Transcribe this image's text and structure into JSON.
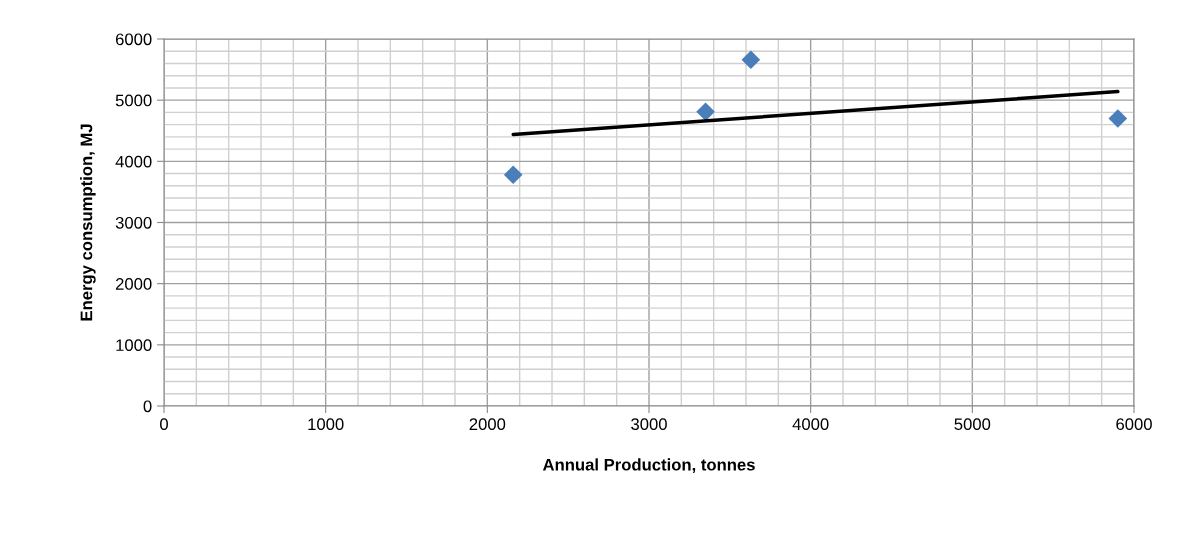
{
  "chart_data": {
    "type": "scatter",
    "xlabel": "Annual Production, tonnes",
    "ylabel": "Energy consumption, MJ",
    "xlim": [
      0,
      6000
    ],
    "xticks": [
      0,
      1000,
      2000,
      3000,
      4000,
      5000,
      6000
    ],
    "ylim": [
      0,
      6000
    ],
    "yticks": [
      0,
      1000,
      2000,
      3000,
      4000,
      5000,
      6000
    ],
    "grid": true,
    "legend": false,
    "series": [
      {
        "color": "#4a7ebb",
        "marker": "diamond",
        "x": [
          2160,
          3350,
          3630,
          5900
        ],
        "values": [
          3780,
          4810,
          5660,
          4700
        ]
      },
      {
        "type": "line",
        "color": "#000000",
        "marker": "none",
        "line_style": "solid",
        "x": [
          2160,
          5900
        ],
        "values": [
          4440,
          5140
        ]
      }
    ]
  }
}
